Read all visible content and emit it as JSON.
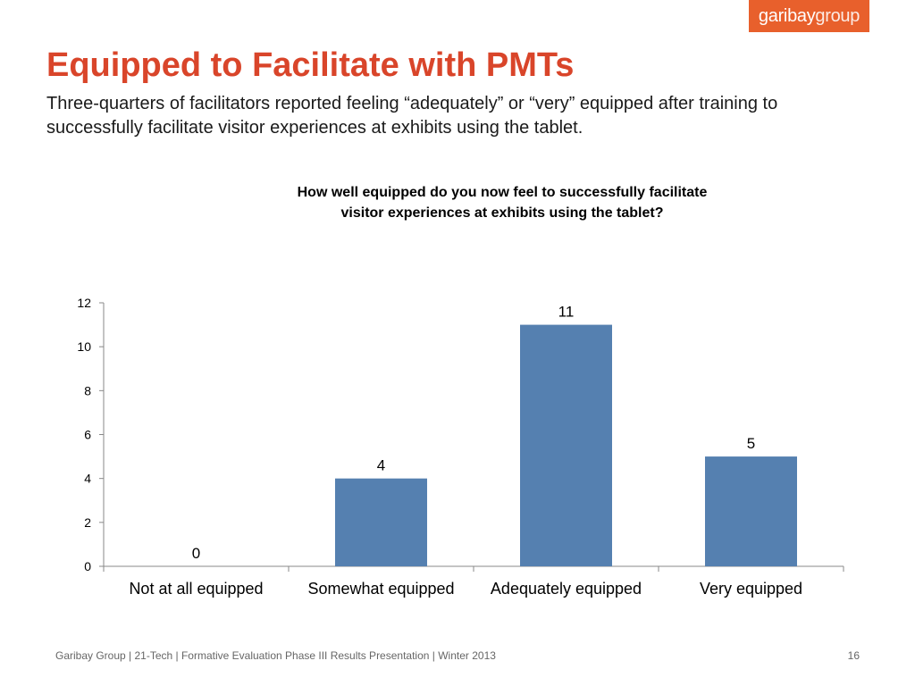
{
  "logo": {
    "part1": "garibay",
    "part2": "group",
    "color": "#e8602c"
  },
  "slide": {
    "title": "Equipped to Facilitate with PMTs",
    "subtitle": "Three-quarters of facilitators reported feeling “adequately” or “very” equipped after training to successfully facilitate visitor experiences at exhibits using the tablet.",
    "title_color": "#d9452a"
  },
  "chart_data": {
    "type": "bar",
    "title_line1": "How well equipped do you now feel to successfully facilitate",
    "title_line2": "visitor experiences at exhibits using the tablet?",
    "categories": [
      "Not at all equipped",
      "Somewhat equipped",
      "Adequately equipped",
      "Very equipped"
    ],
    "values": [
      0,
      4,
      11,
      5
    ],
    "data_labels": [
      "0",
      "4",
      "11",
      "5"
    ],
    "xlabel": "",
    "ylabel": "",
    "ylim": [
      0,
      12
    ],
    "yticks": [
      0,
      2,
      4,
      6,
      8,
      10,
      12
    ],
    "bar_color": "#5580b0",
    "grid": false,
    "legend": "none"
  },
  "footer": {
    "text": "Garibay Group | 21-Tech | Formative Evaluation Phase III Results Presentation | Winter 2013",
    "page_number": "16"
  }
}
